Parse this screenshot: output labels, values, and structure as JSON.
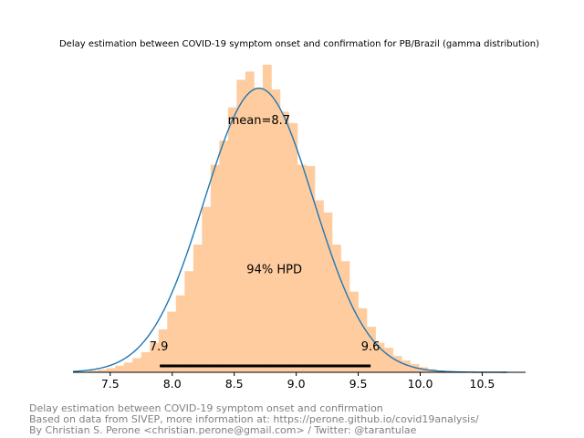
{
  "chart_data": {
    "type": "histogram",
    "title": "Delay estimation between COVID-19 symptom onset and confirmation for PB/Brazil (gamma distribution)",
    "xlabel": "",
    "ylabel": "",
    "xlim": [
      7.2,
      10.85
    ],
    "ylim": [
      0,
      1.0
    ],
    "xticks": [
      7.5,
      8.0,
      8.5,
      9.0,
      9.5,
      10.0,
      10.5
    ],
    "xtick_labels": [
      "7.5",
      "8.0",
      "8.5",
      "9.0",
      "9.5",
      "10.0",
      "10.5"
    ],
    "y_axis_visible": false,
    "grid": false,
    "histogram": {
      "color": "#ffcc9f",
      "bins": [
        {
          "x0": 7.33,
          "x1": 7.4,
          "value": 0.005
        },
        {
          "x0": 7.4,
          "x1": 7.47,
          "value": 0.008
        },
        {
          "x0": 7.47,
          "x1": 7.54,
          "value": 0.013
        },
        {
          "x0": 7.54,
          "x1": 7.61,
          "value": 0.021
        },
        {
          "x0": 7.61,
          "x1": 7.68,
          "value": 0.031
        },
        {
          "x0": 7.68,
          "x1": 7.75,
          "value": 0.045
        },
        {
          "x0": 7.75,
          "x1": 7.82,
          "value": 0.064
        },
        {
          "x0": 7.82,
          "x1": 7.89,
          "value": 0.094
        },
        {
          "x0": 7.89,
          "x1": 7.96,
          "value": 0.137
        },
        {
          "x0": 7.96,
          "x1": 8.03,
          "value": 0.193
        },
        {
          "x0": 8.03,
          "x1": 8.1,
          "value": 0.245
        },
        {
          "x0": 8.1,
          "x1": 8.17,
          "value": 0.322
        },
        {
          "x0": 8.17,
          "x1": 8.24,
          "value": 0.407
        },
        {
          "x0": 8.24,
          "x1": 8.31,
          "value": 0.527
        },
        {
          "x0": 8.31,
          "x1": 8.38,
          "value": 0.661
        },
        {
          "x0": 8.38,
          "x1": 8.45,
          "value": 0.738
        },
        {
          "x0": 8.45,
          "x1": 8.52,
          "value": 0.844
        },
        {
          "x0": 8.52,
          "x1": 8.59,
          "value": 0.932
        },
        {
          "x0": 8.59,
          "x1": 8.66,
          "value": 0.958
        },
        {
          "x0": 8.66,
          "x1": 8.73,
          "value": 0.907
        },
        {
          "x0": 8.73,
          "x1": 8.8,
          "value": 0.98
        },
        {
          "x0": 8.8,
          "x1": 8.87,
          "value": 0.901
        },
        {
          "x0": 8.87,
          "x1": 8.94,
          "value": 0.83
        },
        {
          "x0": 8.94,
          "x1": 9.01,
          "value": 0.794
        },
        {
          "x0": 9.01,
          "x1": 9.08,
          "value": 0.661
        },
        {
          "x0": 9.08,
          "x1": 9.15,
          "value": 0.657
        },
        {
          "x0": 9.15,
          "x1": 9.22,
          "value": 0.548
        },
        {
          "x0": 9.22,
          "x1": 9.29,
          "value": 0.509
        },
        {
          "x0": 9.29,
          "x1": 9.36,
          "value": 0.407
        },
        {
          "x0": 9.36,
          "x1": 9.43,
          "value": 0.354
        },
        {
          "x0": 9.43,
          "x1": 9.5,
          "value": 0.257
        },
        {
          "x0": 9.5,
          "x1": 9.57,
          "value": 0.204
        },
        {
          "x0": 9.57,
          "x1": 9.64,
          "value": 0.145
        },
        {
          "x0": 9.64,
          "x1": 9.71,
          "value": 0.094
        },
        {
          "x0": 9.71,
          "x1": 9.78,
          "value": 0.078
        },
        {
          "x0": 9.78,
          "x1": 9.85,
          "value": 0.052
        },
        {
          "x0": 9.85,
          "x1": 9.92,
          "value": 0.038
        },
        {
          "x0": 9.92,
          "x1": 9.99,
          "value": 0.026
        },
        {
          "x0": 9.99,
          "x1": 10.06,
          "value": 0.016
        },
        {
          "x0": 10.06,
          "x1": 10.13,
          "value": 0.01
        },
        {
          "x0": 10.13,
          "x1": 10.2,
          "value": 0.006
        },
        {
          "x0": 10.2,
          "x1": 10.27,
          "value": 0.004
        },
        {
          "x0": 10.27,
          "x1": 10.34,
          "value": 0.002
        }
      ]
    },
    "density_curve": {
      "color": "#1f77b4",
      "x_range": [
        7.2,
        10.7
      ],
      "mean": 8.7,
      "sd": 0.44,
      "peak": 0.905
    },
    "annotations": {
      "mean_label": "mean=8.7",
      "hpd_label": "94% HPD",
      "hpd_low": 7.9,
      "hpd_high": 9.6,
      "hpd_low_label": "7.9",
      "hpd_high_label": "9.6"
    }
  },
  "footer": {
    "lines": [
      "Delay estimation between COVID-19 symptom onset and confirmation",
      "Based on data from SIVEP, more information at: https://perone.github.io/covid19analysis/",
      "By Christian S. Perone <christian.perone@gmail.com> / Twitter: @tarantulae"
    ]
  }
}
